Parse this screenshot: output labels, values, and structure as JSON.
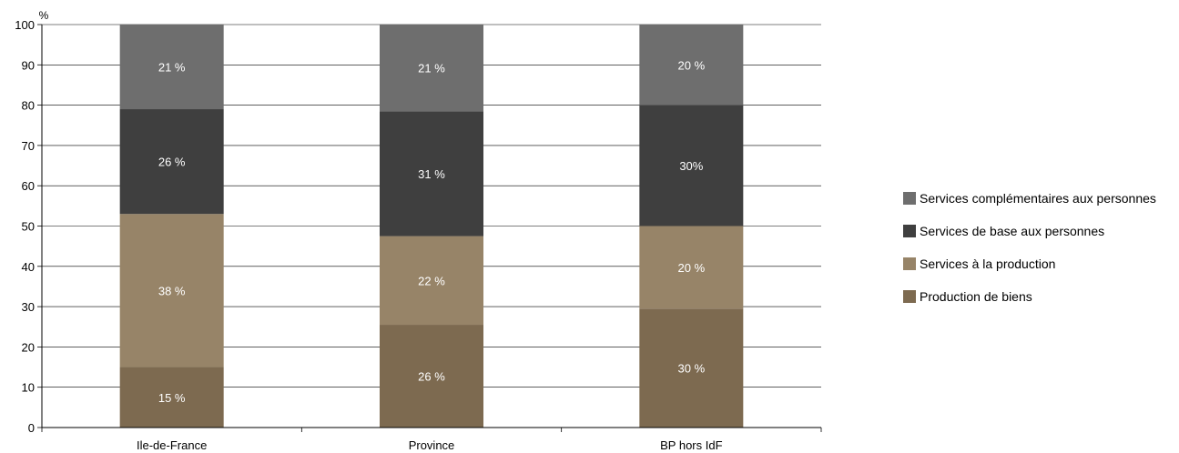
{
  "chart_data": {
    "type": "bar",
    "stacked": true,
    "unit_label": "%",
    "ylim": [
      0,
      100
    ],
    "yticks": [
      0,
      10,
      20,
      30,
      40,
      50,
      60,
      70,
      80,
      90,
      100
    ],
    "grid": true,
    "legend_position": "right",
    "categories": [
      "Ile-de-France",
      "Province",
      "BP hors IdF"
    ],
    "series": [
      {
        "name": "Production de biens",
        "color": "#7d6a50",
        "values": [
          15,
          25.5,
          29.5
        ],
        "labels": [
          "15 %",
          "26 %",
          "30 %"
        ]
      },
      {
        "name": "Services à la production",
        "color": "#978468",
        "values": [
          38,
          22,
          20.5
        ],
        "labels": [
          "38 %",
          "22 %",
          "20 %"
        ]
      },
      {
        "name": "Services de base aux personnes",
        "color": "#3f3f3f",
        "values": [
          26,
          31,
          30
        ],
        "labels": [
          "26 %",
          "31 %",
          "30%"
        ]
      },
      {
        "name": "Services complémentaires aux personnes",
        "color": "#6e6e6e",
        "values": [
          21,
          21.5,
          20
        ],
        "labels": [
          "21 %",
          "21 %",
          "20 %"
        ]
      }
    ]
  }
}
